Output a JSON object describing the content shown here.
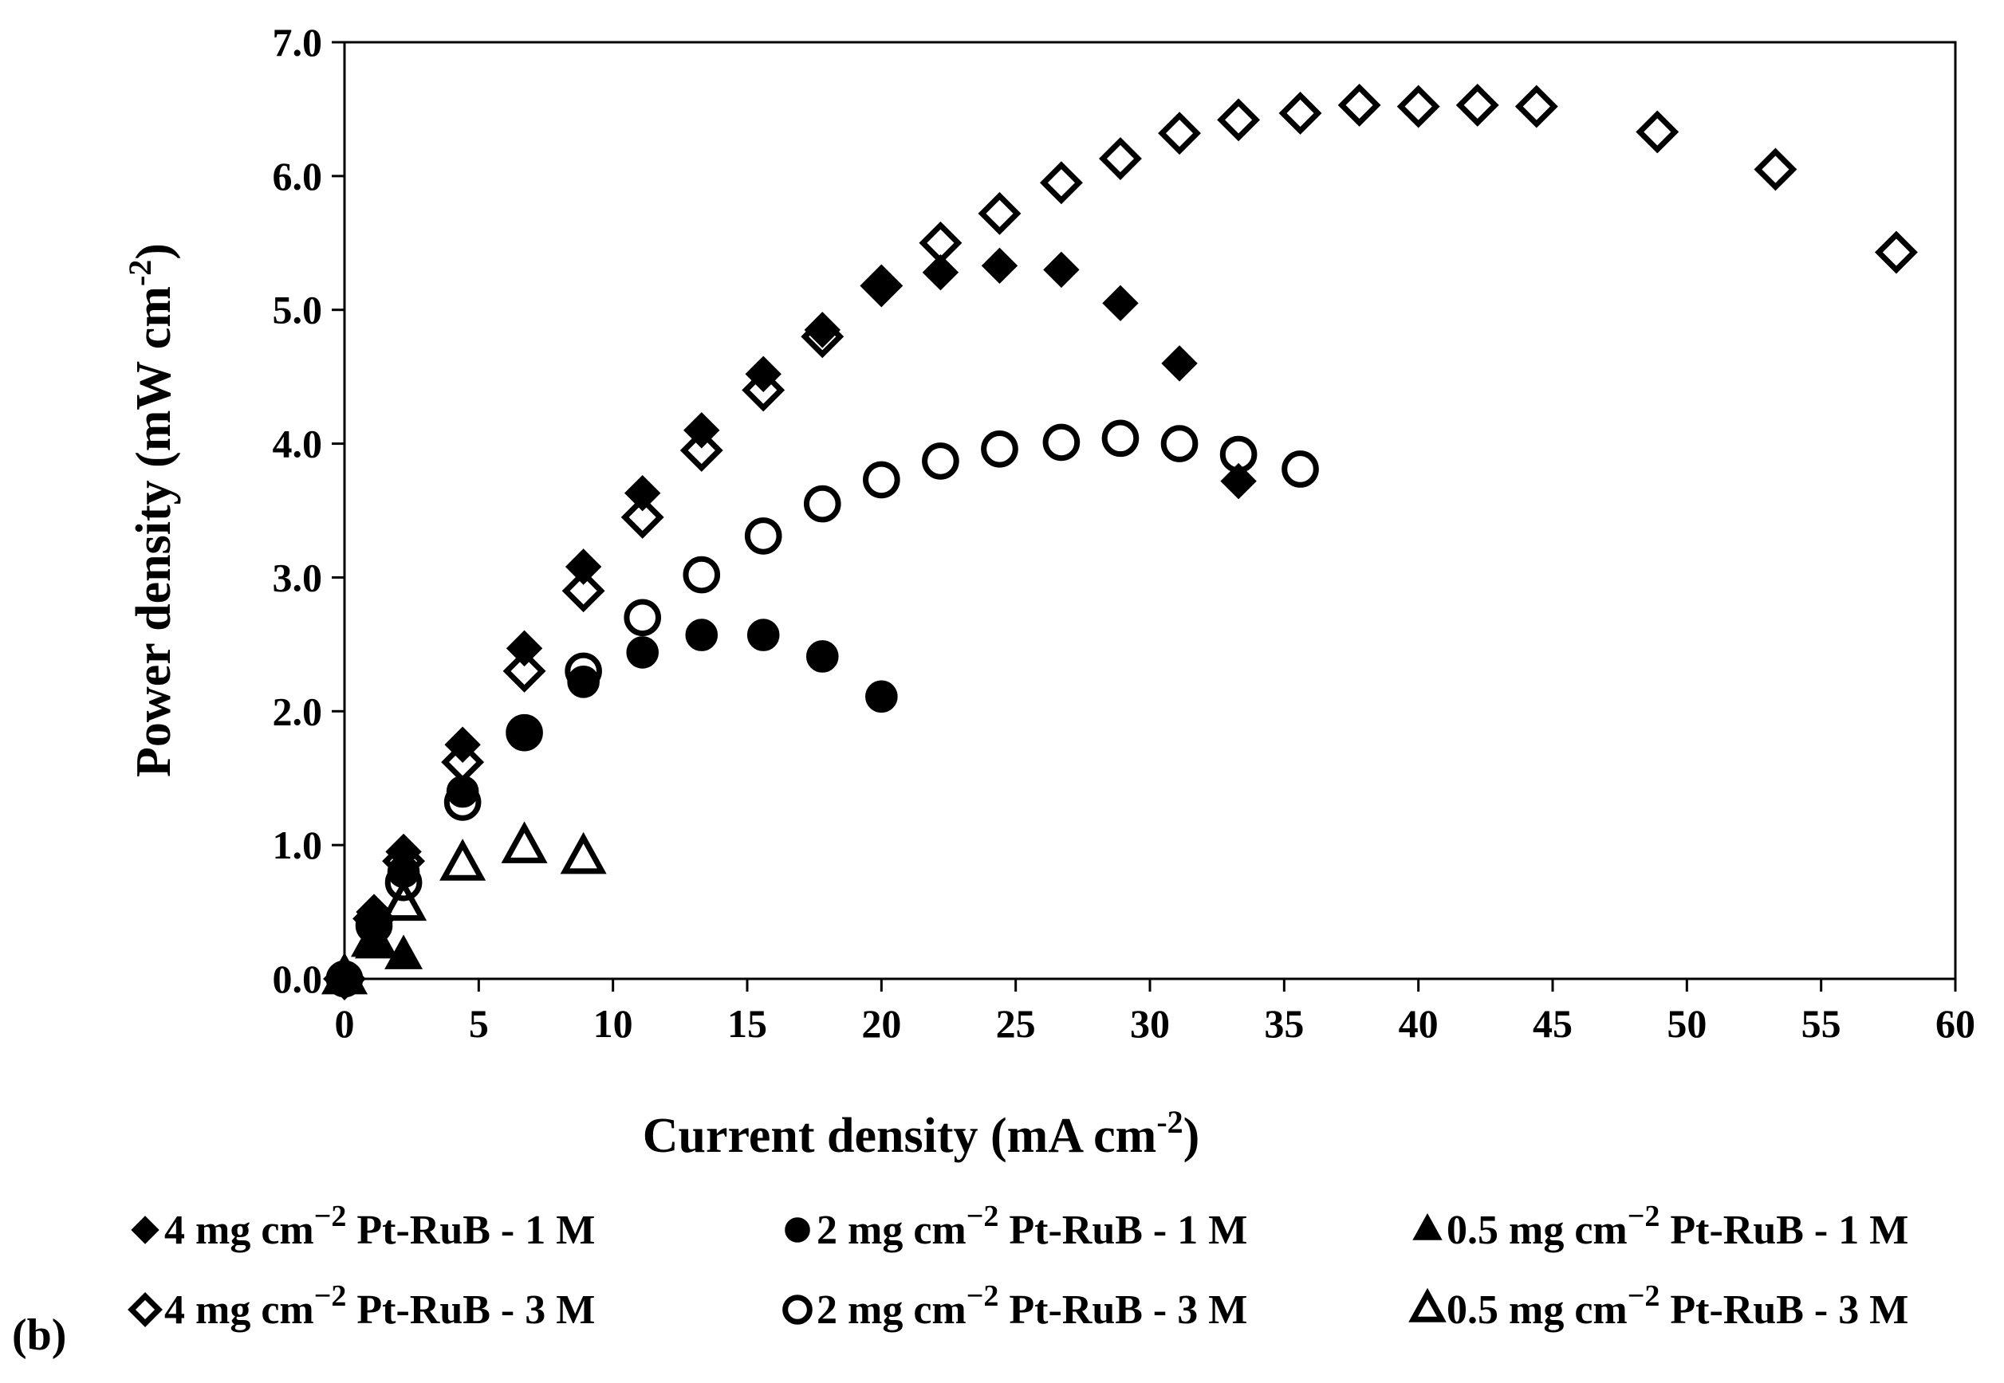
{
  "chart_data": {
    "type": "scatter",
    "panel_label": "(b)",
    "xlabel": {
      "main": "Current density (mA cm",
      "sup": "-2",
      "close": ")"
    },
    "ylabel": {
      "main": "Power density (mW cm",
      "sup": "-2",
      "close": ")"
    },
    "xlim": [
      0,
      60
    ],
    "ylim": [
      0,
      7
    ],
    "x_ticks": [
      0,
      5,
      10,
      15,
      20,
      25,
      30,
      35,
      40,
      45,
      50,
      55,
      60
    ],
    "x_tick_labels": [
      "0",
      "5",
      "10",
      "15",
      "20",
      "25",
      "30",
      "35",
      "40",
      "45",
      "50",
      "55",
      "60"
    ],
    "y_ticks": [
      0,
      1,
      2,
      3,
      4,
      5,
      6,
      7
    ],
    "y_tick_labels": [
      "0.0",
      "1.0",
      "2.0",
      "3.0",
      "4.0",
      "5.0",
      "6.0",
      "7.0"
    ],
    "grid": false,
    "legend_position": "bottom",
    "series": [
      {
        "id": "s4-1m",
        "label": {
          "pre": "4 mg cm",
          "sup": "−2",
          "post": " Pt-RuB - 1 M"
        },
        "marker": "diamond",
        "filled": true,
        "x": [
          0,
          1.1,
          2.2,
          4.4,
          6.7,
          8.9,
          11.1,
          13.3,
          15.6,
          17.8,
          20,
          22.2,
          24.4,
          26.7,
          28.9,
          31.1,
          33.3
        ],
        "y": [
          0,
          0.5,
          0.95,
          1.75,
          2.47,
          3.08,
          3.63,
          4.1,
          4.52,
          4.85,
          5.18,
          5.28,
          5.33,
          5.3,
          5.05,
          4.6,
          3.72
        ]
      },
      {
        "id": "s2-1m",
        "label": {
          "pre": "2 mg cm",
          "sup": "−2",
          "post": " Pt-RuB - 1 M"
        },
        "marker": "circle",
        "filled": true,
        "x": [
          0,
          1.1,
          2.2,
          4.4,
          6.7,
          8.9,
          11.1,
          13.3,
          15.6,
          17.8,
          20
        ],
        "y": [
          0,
          0.38,
          0.8,
          1.4,
          1.85,
          2.22,
          2.44,
          2.57,
          2.57,
          2.41,
          2.11
        ]
      },
      {
        "id": "s05-1m",
        "label": {
          "pre": "0.5 mg cm",
          "sup": "−2",
          "post": " Pt-RuB - 1 M"
        },
        "marker": "triangle",
        "filled": true,
        "x": [
          0,
          1.1,
          2.2
        ],
        "y": [
          0,
          0.25,
          0.17
        ]
      },
      {
        "id": "s4-3m",
        "label": {
          "pre": "4 mg cm",
          "sup": "−2",
          "post": " Pt-RuB - 3 M"
        },
        "marker": "diamond",
        "filled": false,
        "x": [
          0,
          1.1,
          2.2,
          4.4,
          6.7,
          8.9,
          11.1,
          13.3,
          15.6,
          17.8,
          20,
          22.2,
          24.4,
          26.7,
          28.9,
          31.1,
          33.3,
          35.6,
          37.8,
          40,
          42.2,
          44.4,
          48.9,
          53.3,
          57.8
        ],
        "y": [
          0,
          0.45,
          0.88,
          1.62,
          2.3,
          2.9,
          3.45,
          3.95,
          4.4,
          4.8,
          5.18,
          5.5,
          5.72,
          5.95,
          6.13,
          6.32,
          6.42,
          6.47,
          6.53,
          6.52,
          6.53,
          6.52,
          6.33,
          6.05,
          5.43
        ]
      },
      {
        "id": "s2-3m",
        "label": {
          "pre": "2 mg cm",
          "sup": "−2",
          "post": " Pt-RuB - 3 M"
        },
        "marker": "circle",
        "filled": false,
        "x": [
          0,
          1.1,
          2.2,
          4.4,
          6.7,
          8.9,
          11.1,
          13.3,
          15.6,
          17.8,
          20,
          22.2,
          24.4,
          26.7,
          28.9,
          31.1,
          33.3,
          35.6
        ],
        "y": [
          0,
          0.4,
          0.72,
          1.32,
          1.84,
          2.3,
          2.7,
          3.02,
          3.31,
          3.55,
          3.73,
          3.87,
          3.96,
          4.01,
          4.04,
          4.0,
          3.92,
          3.81
        ]
      },
      {
        "id": "s05-3m",
        "label": {
          "pre": "0.5 mg cm",
          "sup": "−2",
          "post": " Pt-RuB - 3 M"
        },
        "marker": "triangle",
        "filled": false,
        "x": [
          0,
          1.1,
          2.2,
          4.4,
          6.7,
          8.9
        ],
        "y": [
          0,
          0.28,
          0.55,
          0.85,
          0.98,
          0.9
        ]
      }
    ]
  }
}
